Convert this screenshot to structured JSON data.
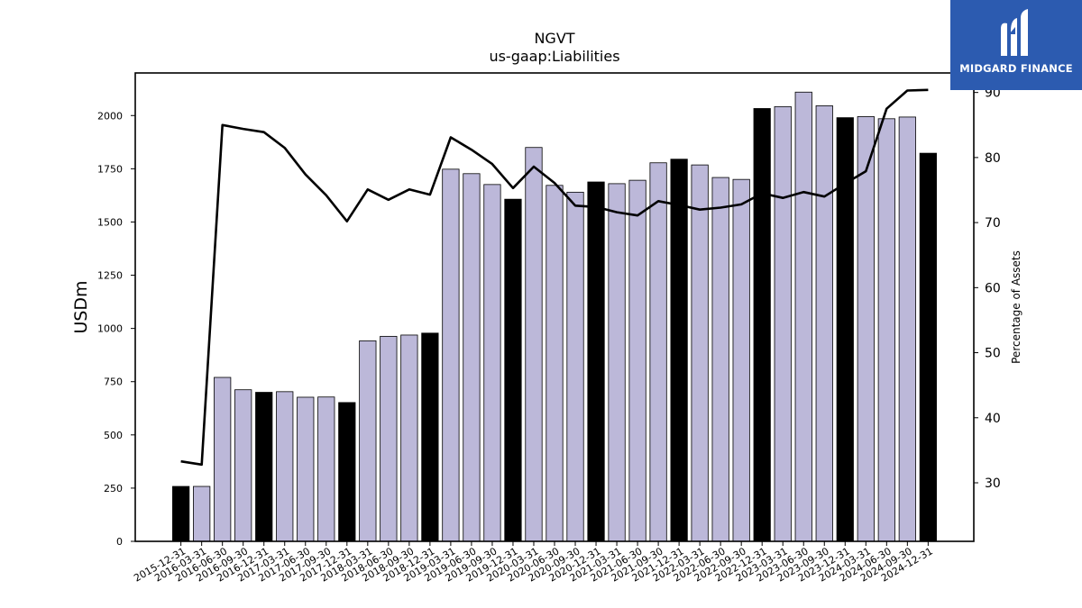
{
  "brand": {
    "name": "MIDGARD FINANCE",
    "color": "#2c5bb0"
  },
  "chart_data": {
    "type": "bar",
    "title": "NGVT",
    "subtitle": "us-gaap:Liabilities",
    "ylabel": "USDm",
    "y2label": "Percentage of Assets",
    "ylim": [
      0,
      2200
    ],
    "y2lim": [
      21,
      93
    ],
    "yticks": [
      0,
      250,
      500,
      750,
      1000,
      1250,
      1500,
      1750,
      2000
    ],
    "y2ticks": [
      30,
      40,
      50,
      60,
      70,
      80,
      90
    ],
    "grid": false,
    "colors": {
      "quarter": "#bcb8d9",
      "year_end": "#000000",
      "line": "#000000"
    },
    "categories": [
      "2015-12-31",
      "2016-03-31",
      "2016-06-30",
      "2016-09-30",
      "2016-12-31",
      "2017-03-31",
      "2017-06-30",
      "2017-09-30",
      "2017-12-31",
      "2018-03-31",
      "2018-06-30",
      "2018-09-30",
      "2018-12-31",
      "2019-03-31",
      "2019-06-30",
      "2019-09-30",
      "2019-12-31",
      "2020-03-31",
      "2020-06-30",
      "2020-09-30",
      "2020-12-31",
      "2021-03-31",
      "2021-06-30",
      "2021-09-30",
      "2021-12-31",
      "2022-03-31",
      "2022-06-30",
      "2022-09-30",
      "2022-12-31",
      "2023-03-31",
      "2023-06-30",
      "2023-09-30",
      "2023-12-31",
      "2024-03-31",
      "2024-06-30",
      "2024-09-30",
      "2024-12-31"
    ],
    "series": [
      {
        "type": "bar",
        "values": [
          258,
          258,
          770,
          712,
          700,
          703,
          677,
          678,
          652,
          942,
          963,
          969,
          978,
          1748,
          1727,
          1676,
          1607,
          1850,
          1672,
          1640,
          1688,
          1680,
          1696,
          1778,
          1795,
          1768,
          1709,
          1700,
          2033,
          2042,
          2110,
          2046,
          1990,
          1995,
          1985,
          1993,
          1823
        ]
      },
      {
        "type": "line",
        "axis": "right",
        "values": [
          33.3,
          32.8,
          85.0,
          84.4,
          83.9,
          81.5,
          77.4,
          74.2,
          70.2,
          75.1,
          73.5,
          75.1,
          74.3,
          83.1,
          81.2,
          79.0,
          75.3,
          78.6,
          76.1,
          72.6,
          72.4,
          71.6,
          71.1,
          73.3,
          72.7,
          72.0,
          72.3,
          72.8,
          74.5,
          73.8,
          74.7,
          74.0,
          76.0,
          77.9,
          87.5,
          90.3,
          90.4
        ]
      }
    ]
  }
}
